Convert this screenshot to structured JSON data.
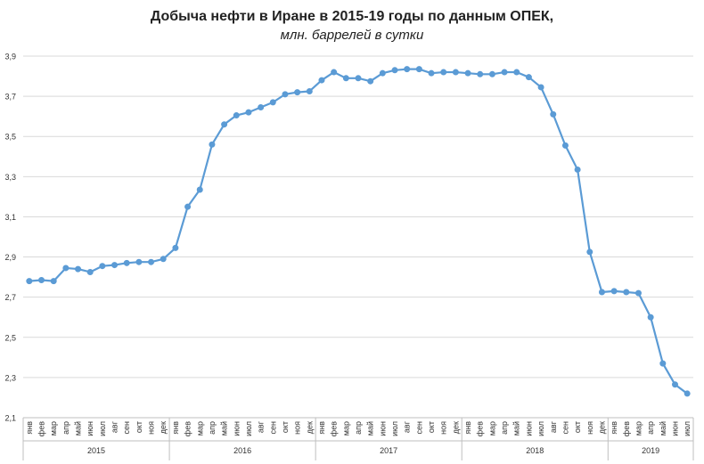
{
  "chart_data": {
    "type": "line",
    "title": "Добыча  нефти в Иране в 2015-19 годы по данным  ОПЕК,",
    "subtitle": "млн. баррелей в сутки",
    "xlabel": "",
    "ylabel": "",
    "ylim": [
      2.1,
      3.9
    ],
    "yticks": [
      "2,1",
      "2,3",
      "2,5",
      "2,7",
      "2,9",
      "3,1",
      "3,3",
      "3,5",
      "3,7",
      "3,9"
    ],
    "grid": true,
    "legend": "none",
    "line_color": "#5b9bd5",
    "years": [
      {
        "label": "2015",
        "months": 12
      },
      {
        "label": "2016",
        "months": 12
      },
      {
        "label": "2017",
        "months": 12
      },
      {
        "label": "2018",
        "months": 12
      },
      {
        "label": "2019",
        "months": 7
      }
    ],
    "categories": [
      "янв",
      "фев",
      "мар",
      "апр",
      "май",
      "июн",
      "июл",
      "авг",
      "сен",
      "окт",
      "ноя",
      "дек",
      "янв",
      "фев",
      "мар",
      "апр",
      "май",
      "июн",
      "июл",
      "авг",
      "сен",
      "окт",
      "ноя",
      "дек",
      "янв",
      "фев",
      "мар",
      "апр",
      "май",
      "июн",
      "июл",
      "авг",
      "сен",
      "окт",
      "ноя",
      "дек",
      "янв",
      "фев",
      "мар",
      "апр",
      "май",
      "июн",
      "июл",
      "авг",
      "сен",
      "окт",
      "ноя",
      "дек",
      "янв",
      "фев",
      "мар",
      "апр",
      "май",
      "июн",
      "июл"
    ],
    "values": [
      2.78,
      2.785,
      2.78,
      2.845,
      2.84,
      2.825,
      2.855,
      2.86,
      2.87,
      2.875,
      2.875,
      2.89,
      2.945,
      3.15,
      3.235,
      3.46,
      3.56,
      3.605,
      3.62,
      3.645,
      3.67,
      3.71,
      3.72,
      3.725,
      3.78,
      3.82,
      3.79,
      3.79,
      3.775,
      3.815,
      3.83,
      3.835,
      3.835,
      3.815,
      3.82,
      3.82,
      3.815,
      3.81,
      3.81,
      3.82,
      3.82,
      3.795,
      3.745,
      3.61,
      3.455,
      3.335,
      2.925,
      2.725,
      2.73,
      2.725,
      2.72,
      2.6,
      2.37,
      2.265,
      2.22
    ]
  }
}
